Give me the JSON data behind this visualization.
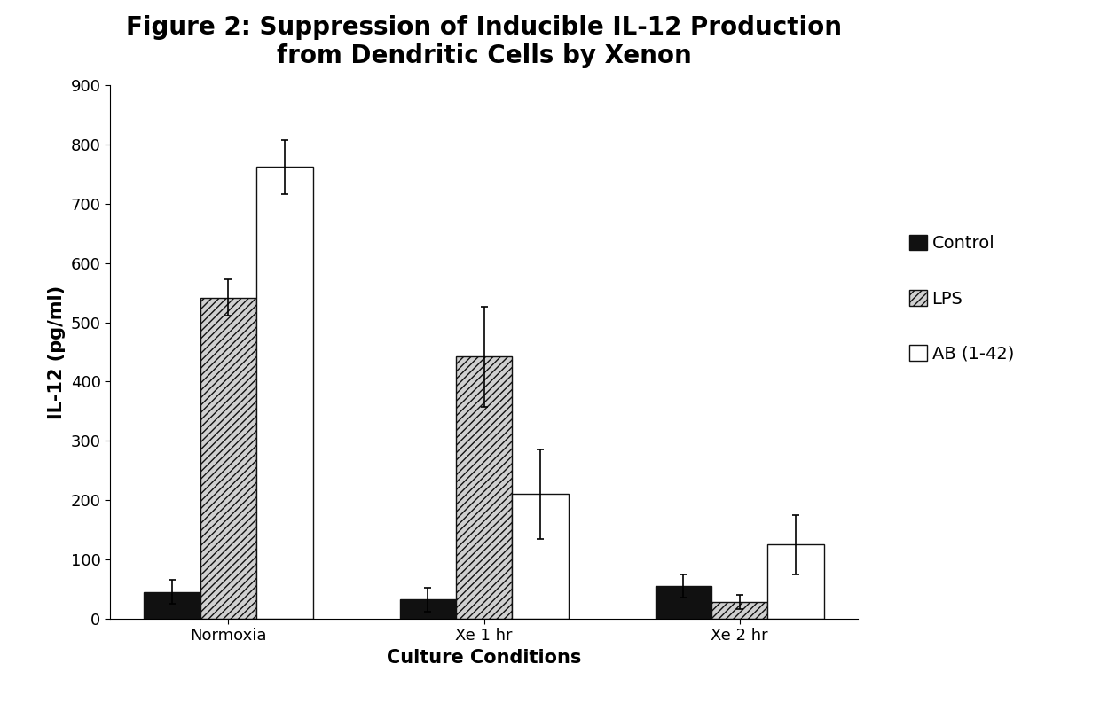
{
  "title": "Figure 2: Suppression of Inducible IL-12 Production\nfrom Dendritic Cells by Xenon",
  "xlabel": "Culture Conditions",
  "ylabel": "IL-12 (pg/ml)",
  "categories": [
    "Normoxia",
    "Xe 1 hr",
    "Xe 2 hr"
  ],
  "series": {
    "Control": {
      "values": [
        45,
        32,
        55
      ],
      "errors": [
        20,
        20,
        20
      ],
      "color": "#111111",
      "hatch": null
    },
    "LPS": {
      "values": [
        542,
        442,
        28
      ],
      "errors": [
        30,
        85,
        12
      ],
      "color": "#d0d0d0",
      "hatch": "////"
    },
    "AB (1-42)": {
      "values": [
        762,
        210,
        125
      ],
      "errors": [
        45,
        75,
        50
      ],
      "color": "#ffffff",
      "hatch": null
    }
  },
  "ylim": [
    0,
    900
  ],
  "yticks": [
    0,
    100,
    200,
    300,
    400,
    500,
    600,
    700,
    800,
    900
  ],
  "bar_width": 0.22,
  "legend_labels": [
    "Control",
    "LPS",
    "AB (1-42)"
  ],
  "background_color": "#ffffff",
  "title_fontsize": 20,
  "label_fontsize": 15,
  "tick_fontsize": 13,
  "legend_fontsize": 14
}
